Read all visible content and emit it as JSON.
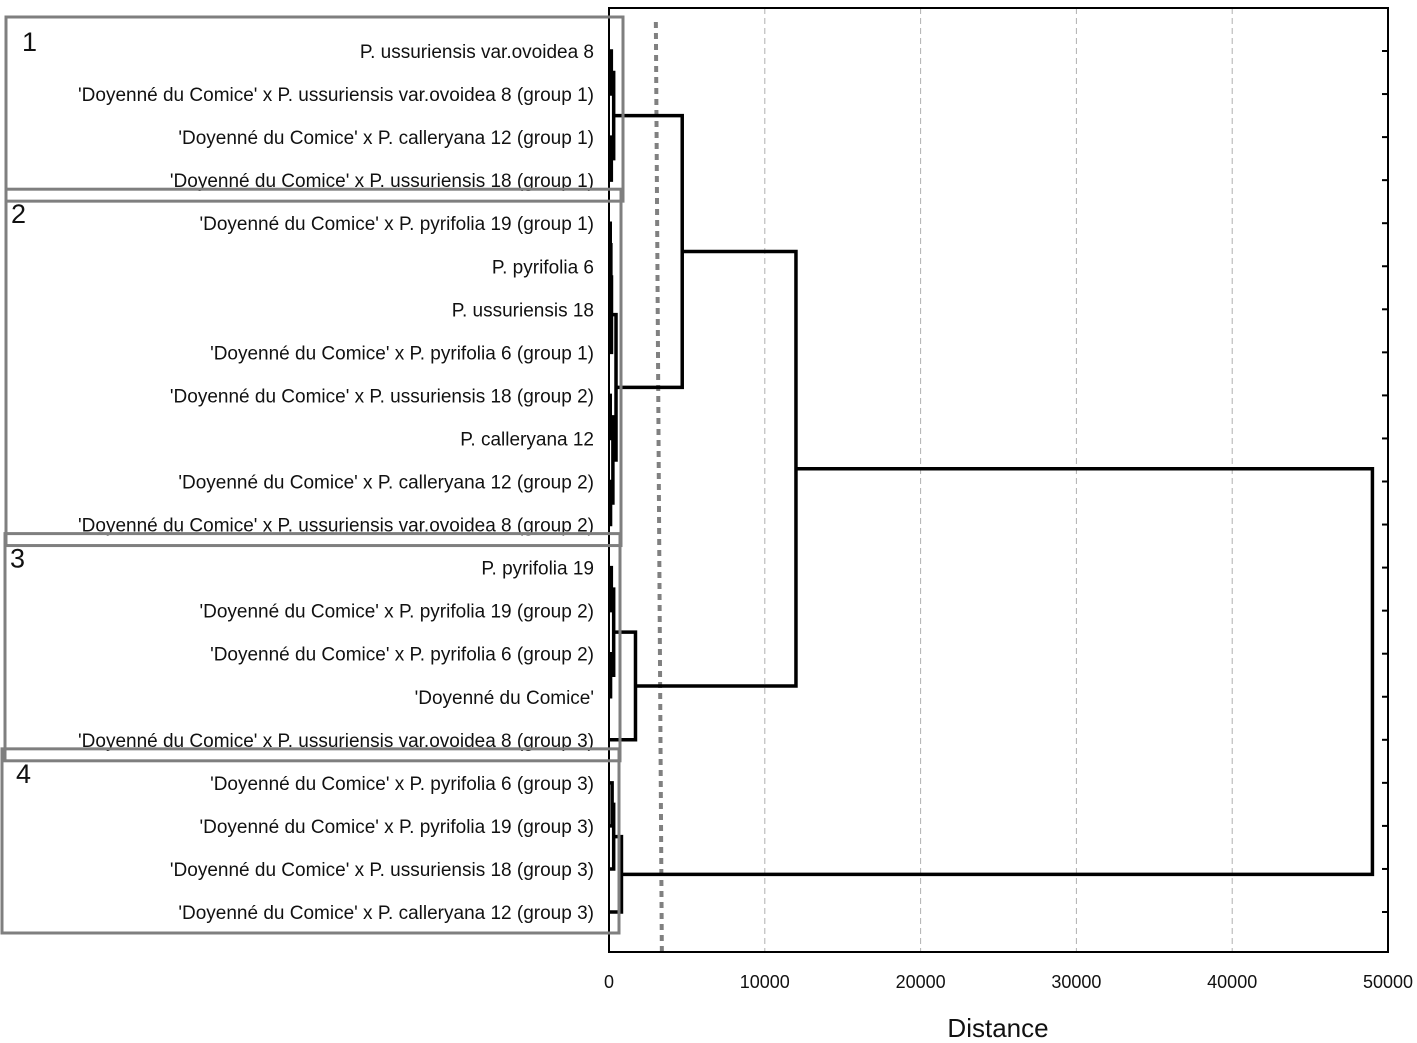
{
  "chart_data": {
    "type": "dendrogram",
    "orientation": "horizontal",
    "xlabel": "Distance",
    "xlim": [
      0,
      50000
    ],
    "xticks": [
      0,
      10000,
      20000,
      30000,
      40000,
      50000
    ],
    "grid": "vertical dashed",
    "cut_line": {
      "x": 3200,
      "style": "dotted"
    },
    "leaves": [
      "P. ussuriensis var.ovoidea 8",
      "'Doyenné du Comice' x P. ussuriensis var.ovoidea 8 (group 1)",
      "'Doyenné du Comice' x P. calleryana 12 (group 1)",
      "'Doyenné du Comice' x P. ussuriensis 18 (group 1)",
      "'Doyenné du Comice' x P. pyrifolia 19 (group 1)",
      "P. pyrifolia 6",
      "P. ussuriensis 18",
      "'Doyenné du Comice' x P. pyrifolia 6 (group 1)",
      "'Doyenné du Comice' x P. ussuriensis 18 (group 2)",
      "P. calleryana 12",
      "'Doyenné du Comice' x P. calleryana 12 (group 2)",
      "'Doyenné du Comice' x P. ussuriensis var.ovoidea 8 (group 2)",
      "P. pyrifolia 19",
      "'Doyenné du Comice' x P. pyrifolia 19 (group 2)",
      "'Doyenné du Comice' x P. pyrifolia 6 (group 2)",
      "'Doyenné du Comice'",
      "'Doyenné du Comice' x P. ussuriensis var.ovoidea 8 (group 3)",
      "'Doyenné du Comice' x P. pyrifolia 6 (group 3)",
      "'Doyenné du Comice' x P. pyrifolia 19 (group 3)",
      "'Doyenné du Comice' x P. ussuriensis 18 (group 3)",
      "'Doyenné du Comice' x P. calleryana 12 (group 3)"
    ],
    "merges": [
      {
        "a": 0,
        "b": 1,
        "height": 150
      },
      {
        "a": 2,
        "b": 3,
        "height": 150
      },
      {
        "a": "m0",
        "b": "m1",
        "height": 300
      },
      {
        "a": 4,
        "b": 5,
        "height": 80
      },
      {
        "a": "m3",
        "b": 6,
        "height": 120
      },
      {
        "a": "m4",
        "b": 7,
        "height": 160
      },
      {
        "a": 8,
        "b": 9,
        "height": 80
      },
      {
        "a": 10,
        "b": 11,
        "height": 100
      },
      {
        "a": "m6",
        "b": "m7",
        "height": 250
      },
      {
        "a": "m5",
        "b": "m8",
        "height": 450
      },
      {
        "a": "m2",
        "b": "m9",
        "height": 4700
      },
      {
        "a": 12,
        "b": 13,
        "height": 150
      },
      {
        "a": 14,
        "b": 15,
        "height": 100
      },
      {
        "a": "m11",
        "b": "m12",
        "height": 300
      },
      {
        "a": "m13",
        "b": 16,
        "height": 1700
      },
      {
        "a": "m10",
        "b": "m14",
        "height": 12000
      },
      {
        "a": 17,
        "b": 18,
        "height": 200
      },
      {
        "a": "m16",
        "b": 19,
        "height": 300
      },
      {
        "a": "m17",
        "b": 20,
        "height": 800
      },
      {
        "a": "m15",
        "b": "m18",
        "height": 49000
      }
    ],
    "groups": [
      {
        "label": "1",
        "first": 0,
        "last": 3
      },
      {
        "label": "2",
        "first": 4,
        "last": 11
      },
      {
        "label": "3",
        "first": 12,
        "last": 16
      },
      {
        "label": "4",
        "first": 17,
        "last": 20
      }
    ]
  },
  "colors": {
    "line": "#000000",
    "box": "#7f7f7f",
    "grid": "#b0b0b0",
    "cut": "#808080"
  }
}
